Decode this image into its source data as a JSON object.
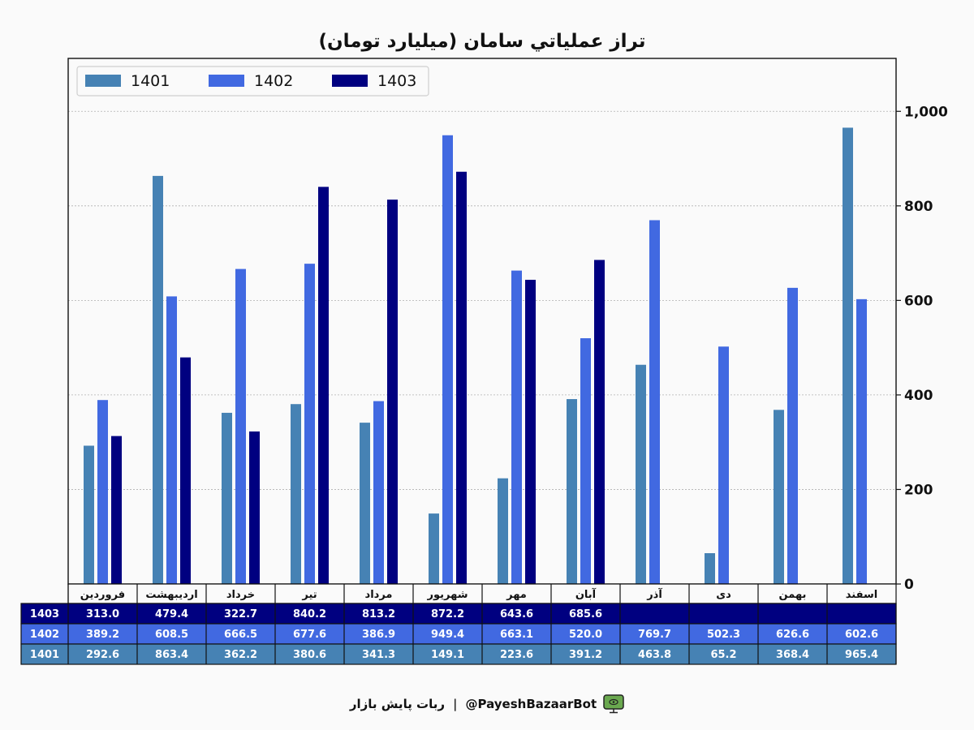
{
  "chart_data": {
    "type": "bar",
    "title": "تراز عملیاتي سامان (میلیارد تومان)",
    "categories": [
      "فروردین",
      "اردیبهشت",
      "خرداد",
      "تیر",
      "مرداد",
      "شهریور",
      "مهر",
      "آبان",
      "آذر",
      "دی",
      "بهمن",
      "اسفند"
    ],
    "series": [
      {
        "name": "1401",
        "color": "#4682b4",
        "values": [
          292.6,
          863.4,
          362.2,
          380.6,
          341.3,
          149.1,
          223.6,
          391.2,
          463.8,
          65.2,
          368.4,
          965.4
        ],
        "labels": [
          "292.6",
          "863.4",
          "362.2",
          "380.6",
          "341.3",
          "149.1",
          "223.6",
          "391.2",
          "463.8",
          "65.2",
          "368.4",
          "965.4"
        ]
      },
      {
        "name": "1402",
        "color": "#4169e1",
        "values": [
          389.2,
          608.5,
          666.5,
          677.6,
          386.9,
          949.4,
          663.1,
          520.0,
          769.7,
          502.3,
          626.6,
          602.6
        ],
        "labels": [
          "389.2",
          "608.5",
          "666.5",
          "677.6",
          "386.9",
          "949.4",
          "663.1",
          "520.0",
          "769.7",
          "502.3",
          "626.6",
          "602.6"
        ]
      },
      {
        "name": "1403",
        "color": "#000080",
        "values": [
          313.0,
          479.4,
          322.7,
          840.2,
          813.2,
          872.2,
          643.6,
          685.6,
          null,
          null,
          null,
          null
        ],
        "labels": [
          "313.0",
          "479.4",
          "322.7",
          "840.2",
          "813.2",
          "872.2",
          "643.6",
          "685.6",
          "",
          "",
          "",
          ""
        ]
      }
    ],
    "yticks": [
      0,
      200,
      400,
      600,
      800,
      1000
    ],
    "ytick_labels": [
      "0",
      "200",
      "400",
      "600",
      "800",
      "1,000"
    ],
    "ylim": [
      0,
      1112
    ],
    "y_axis_side": "right",
    "grid": true,
    "legend": "top-left",
    "table_below": true
  },
  "footer": {
    "handle": "@PayeshBazaarBot",
    "separator": "|",
    "bot_name": "ربات پایش بازار",
    "icon": "monitor-icon"
  }
}
